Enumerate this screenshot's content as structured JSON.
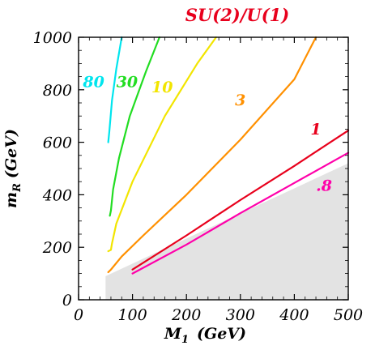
{
  "chart_data": {
    "type": "line",
    "title": "SU(2)/U(1)",
    "title_color": "#e8001c",
    "xlabel": "M",
    "xlabel_sub": "1",
    "xlabel_unit": "(GeV)",
    "ylabel": "m",
    "ylabel_sub": "R",
    "ylabel_unit": "(GeV)",
    "xlim": [
      0,
      500
    ],
    "ylim": [
      0,
      1000
    ],
    "xticks": [
      0,
      100,
      200,
      300,
      400,
      500
    ],
    "yticks": [
      0,
      200,
      400,
      600,
      800,
      1000
    ],
    "grid": false,
    "excluded_region": {
      "color": "#e3e3e3",
      "points": [
        [
          50,
          0
        ],
        [
          500,
          0
        ],
        [
          500,
          520
        ],
        [
          50,
          90
        ]
      ]
    },
    "series": [
      {
        "label": "80",
        "color": "#00e5ee",
        "x": [
          55,
          57,
          62,
          70,
          80
        ],
        "y": [
          600,
          640,
          760,
          880,
          1000
        ]
      },
      {
        "label": "30",
        "color": "#22dd22",
        "x": [
          58,
          60,
          64,
          75,
          95,
          125,
          150
        ],
        "y": [
          320,
          340,
          420,
          540,
          700,
          870,
          1000
        ]
      },
      {
        "label": "10",
        "color": "#f2e500",
        "x": [
          55,
          60,
          62,
          70,
          100,
          160,
          220,
          255
        ],
        "y": [
          185,
          190,
          215,
          290,
          450,
          700,
          900,
          1000
        ]
      },
      {
        "label": "3",
        "color": "#ff9000",
        "x": [
          55,
          60,
          80,
          120,
          200,
          300,
          400,
          440
        ],
        "y": [
          105,
          115,
          165,
          245,
          400,
          610,
          840,
          1000
        ]
      },
      {
        "label": "1",
        "color": "#e8001c",
        "x": [
          100,
          200,
          300,
          400,
          500
        ],
        "y": [
          115,
          245,
          380,
          510,
          645
        ]
      },
      {
        "label": ".8",
        "color": "#ff00aa",
        "x": [
          100,
          200,
          300,
          400,
          500
        ],
        "y": [
          100,
          210,
          330,
          445,
          560
        ]
      }
    ],
    "labels": [
      {
        "text": "80",
        "x": 28,
        "y": 810,
        "color": "#00e5ee"
      },
      {
        "text": "30",
        "x": 90,
        "y": 810,
        "color": "#22dd22"
      },
      {
        "text": "10",
        "x": 155,
        "y": 790,
        "color": "#f2e500"
      },
      {
        "text": "3",
        "x": 300,
        "y": 740,
        "color": "#ff9000"
      },
      {
        "text": "1",
        "x": 440,
        "y": 630,
        "color": "#e8001c"
      },
      {
        "text": ".8",
        "x": 455,
        "y": 415,
        "color": "#ff00aa"
      }
    ]
  }
}
